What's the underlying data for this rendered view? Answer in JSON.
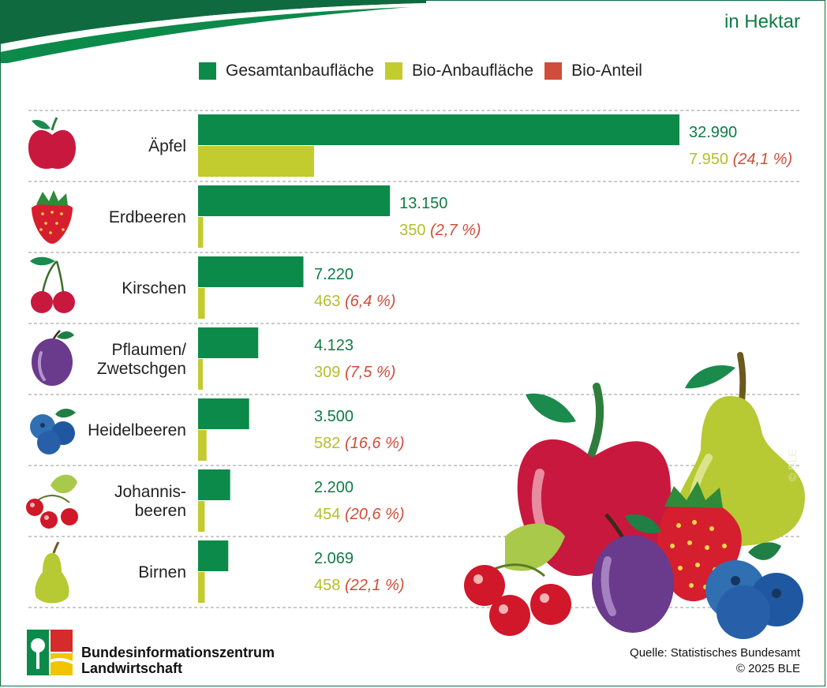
{
  "header": {
    "unit": "in Hektar"
  },
  "legend": [
    {
      "label": "Gesamtanbaufläche",
      "color": "#0c8a4a"
    },
    {
      "label": "Bio-Anbaufläche",
      "color": "#c2cc2e"
    },
    {
      "label": "Bio-Anteil",
      "color": "#cf4d3a"
    }
  ],
  "chart_data": {
    "type": "bar",
    "orientation": "horizontal",
    "unit": "in Hektar",
    "categories": [
      "Äpfel",
      "Erdbeeren",
      "Kirschen",
      "Pflaumen/ Zwetschgen",
      "Heidelbeeren",
      "Johannis- beeren",
      "Birnen"
    ],
    "series": [
      {
        "name": "Gesamtanbaufläche",
        "color": "#0c8a4a",
        "values": [
          32990,
          13150,
          7220,
          4123,
          3500,
          2200,
          2069
        ]
      },
      {
        "name": "Bio-Anbaufläche",
        "color": "#c2cc2e",
        "values": [
          7950,
          350,
          463,
          309,
          582,
          454,
          458
        ]
      }
    ],
    "labels_total": [
      "32.990",
      "13.150",
      "7.220",
      "4.123",
      "3.500",
      "2.200",
      "2.069"
    ],
    "labels_bio": [
      "7.950",
      "350",
      "463",
      "309",
      "582",
      "454",
      "458"
    ],
    "labels_share": [
      "(24,1 %)",
      "(2,7 %)",
      "(6,4 %)",
      "(7,5 %)",
      "(16,6 %)",
      "(20,6 %)",
      "(22,1 %)"
    ],
    "xlim": [
      0,
      32990
    ],
    "legend_position": "top",
    "icons": [
      "apple-icon",
      "strawberry-icon",
      "cherry-icon",
      "plum-icon",
      "blueberry-icon",
      "redcurrant-icon",
      "pear-icon"
    ]
  },
  "footer": {
    "org_line1": "Bundesinformationszentrum",
    "org_line2": "Landwirtschaft",
    "source": "Quelle: Statistisches Bundesamt",
    "copyright": "© 2025 BLE",
    "illustration_copyright": "© BLE"
  }
}
